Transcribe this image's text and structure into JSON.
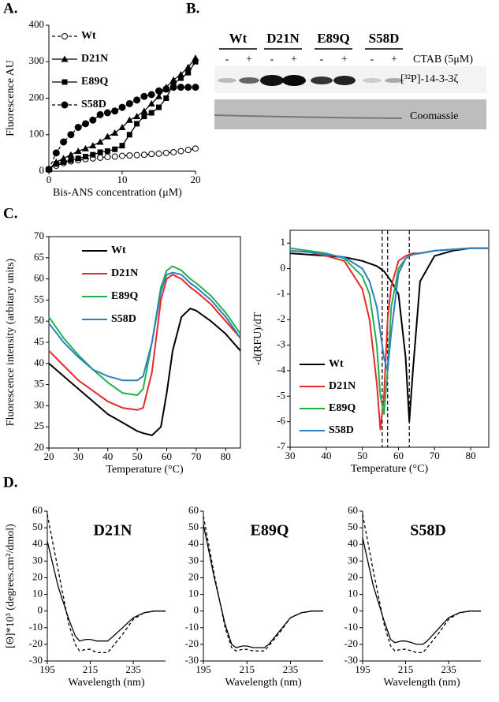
{
  "panel_labels": [
    "A.",
    "B.",
    "C.",
    "D."
  ],
  "gel": {
    "groups": [
      "Wt",
      "D21N",
      "E89Q",
      "S58D"
    ],
    "lanes": [
      "-",
      "+",
      "-",
      "+",
      "-",
      "+",
      "-",
      "+"
    ],
    "condition": "CTAB (5μM)",
    "rows": [
      "[³²P]-14-3-3ζ",
      "Coomassie"
    ]
  },
  "chart_data": [
    {
      "type": "line",
      "xlabel": "Bis-ANS  concentration (μM)",
      "ylabel": "Fluorescence AU",
      "x": [
        0,
        1,
        2,
        3,
        4,
        5,
        6,
        7,
        8,
        9,
        10,
        11,
        12,
        13,
        14,
        15,
        16,
        17,
        18,
        19,
        20
      ],
      "xlim": [
        0,
        20
      ],
      "xticks": [
        0,
        10,
        20
      ],
      "ylim": [
        0,
        400
      ],
      "yticks": [
        0,
        100,
        200,
        300,
        400
      ],
      "frame": "axes",
      "legend": true,
      "series": [
        {
          "name": "Wt",
          "color": "#000000",
          "linestyle": "dashed",
          "marker": "circle-open",
          "values": [
            5,
            15,
            22,
            27,
            30,
            33,
            35,
            37,
            39,
            40,
            42,
            43,
            44,
            45,
            47,
            48,
            50,
            52,
            55,
            58,
            62
          ]
        },
        {
          "name": "D21N",
          "color": "#000000",
          "linestyle": "solid",
          "marker": "triangle",
          "values": [
            5,
            25,
            35,
            45,
            55,
            62,
            70,
            80,
            95,
            105,
            120,
            140,
            150,
            165,
            185,
            205,
            230,
            250,
            265,
            285,
            310
          ]
        },
        {
          "name": "E89Q",
          "color": "#000000",
          "linestyle": "solid",
          "marker": "square",
          "values": [
            5,
            20,
            25,
            30,
            35,
            40,
            45,
            52,
            55,
            60,
            70,
            100,
            130,
            150,
            160,
            175,
            200,
            240,
            255,
            270,
            300
          ]
        },
        {
          "name": "S58D",
          "color": "#000000",
          "linestyle": "dashed",
          "marker": "circle",
          "values": [
            5,
            50,
            80,
            100,
            120,
            130,
            140,
            155,
            160,
            165,
            175,
            185,
            195,
            205,
            210,
            220,
            225,
            230,
            230,
            230,
            230
          ]
        }
      ]
    },
    {
      "type": "line",
      "xlabel": "Temperature (°C)",
      "ylabel": "Fluorescence intensity (arbitary units)",
      "x": [
        20,
        25,
        30,
        35,
        40,
        45,
        50,
        52,
        55,
        58,
        60,
        62,
        65,
        68,
        70,
        75,
        80,
        85
      ],
      "xlim": [
        20,
        85
      ],
      "xticks": [
        20,
        30,
        40,
        50,
        60,
        70,
        80
      ],
      "ylim": [
        20,
        70
      ],
      "yticks": [
        20,
        25,
        30,
        35,
        40,
        45,
        50,
        55,
        60,
        65,
        70
      ],
      "frame": "box",
      "legend": true,
      "series": [
        {
          "name": "Wt",
          "color": "#000000",
          "values": [
            40,
            37,
            34,
            31,
            28,
            26,
            24,
            23.5,
            23,
            25,
            33,
            43,
            51,
            53,
            52.5,
            50,
            47,
            43
          ]
        },
        {
          "name": "D21N",
          "color": "#e8282b",
          "values": [
            43,
            39.5,
            36,
            33.5,
            31,
            29.5,
            29,
            29.5,
            38,
            55,
            60,
            61,
            60,
            58,
            57,
            54,
            50,
            46
          ]
        },
        {
          "name": "E89Q",
          "color": "#22b04b",
          "values": [
            51,
            46,
            42,
            38.5,
            35.5,
            33,
            32.5,
            34,
            45,
            58,
            62,
            63,
            62,
            60,
            59,
            56,
            52,
            47
          ]
        },
        {
          "name": "S58D",
          "color": "#2e7fc1",
          "values": [
            49.5,
            45,
            41.5,
            38.5,
            37,
            36,
            36,
            37,
            45,
            57,
            61,
            61.5,
            61,
            59,
            58,
            55,
            51,
            46
          ]
        }
      ]
    },
    {
      "type": "line",
      "xlabel": "Temperature (°C)",
      "ylabel": "-d(RFU)/dT",
      "x": [
        30,
        35,
        40,
        45,
        50,
        52,
        54,
        55,
        56,
        57,
        58,
        60,
        62,
        63,
        64,
        66,
        70,
        75,
        80,
        85
      ],
      "xlim": [
        30,
        85
      ],
      "xticks": [
        30,
        40,
        50,
        60,
        70,
        80
      ],
      "ylim": [
        -7,
        1.5
      ],
      "yticks": [
        -7,
        -6,
        -5,
        -4,
        -3,
        -2,
        -1,
        0,
        1
      ],
      "frame": "box",
      "legend": true,
      "vlines": [
        55.5,
        57,
        63
      ],
      "series": [
        {
          "name": "Wt",
          "color": "#000000",
          "values": [
            0.6,
            0.55,
            0.5,
            0.45,
            0.3,
            0.2,
            0.1,
            0,
            -0.1,
            -0.3,
            -0.5,
            -1,
            -3.5,
            -6,
            -4,
            -0.5,
            0.5,
            0.7,
            0.8,
            0.8
          ]
        },
        {
          "name": "D21N",
          "color": "#e8282b",
          "values": [
            0.7,
            0.65,
            0.5,
            0.3,
            -0.8,
            -2,
            -4.5,
            -6.3,
            -5,
            -2,
            -0.7,
            0.3,
            0.5,
            0.55,
            0.6,
            0.6,
            0.7,
            0.75,
            0.8,
            0.8
          ]
        },
        {
          "name": "E89Q",
          "color": "#22b04b",
          "values": [
            0.8,
            0.7,
            0.6,
            0.4,
            -0.3,
            -1,
            -3,
            -5,
            -5.7,
            -4,
            -1.5,
            0,
            0.4,
            0.5,
            0.55,
            0.6,
            0.7,
            0.75,
            0.8,
            0.8
          ]
        },
        {
          "name": "S58D",
          "color": "#2e7fc1",
          "values": [
            0.7,
            0.65,
            0.55,
            0.45,
            0,
            -0.5,
            -1.5,
            -2.5,
            -3.5,
            -4,
            -2.5,
            -0.2,
            0.4,
            0.5,
            0.55,
            0.6,
            0.7,
            0.75,
            0.8,
            0.8
          ]
        }
      ]
    },
    {
      "type": "line",
      "title": "D21N",
      "xlabel": "Wavelength (nm)",
      "ylabel": "[Θ]*10³ (degrees.cm²/dmol)",
      "x": [
        195,
        200,
        205,
        208,
        210,
        213,
        215,
        218,
        220,
        223,
        225,
        230,
        235,
        240,
        245,
        250
      ],
      "xlim": [
        195,
        250
      ],
      "xticks": [
        195,
        215,
        235
      ],
      "ylim": [
        -30,
        60
      ],
      "yticks": [
        -30,
        -20,
        -10,
        0,
        10,
        20,
        30,
        40,
        50,
        60
      ],
      "frame": "axes",
      "series": [
        {
          "color": "#000000",
          "linestyle": "solid",
          "values": [
            42,
            15,
            -5,
            -15,
            -18,
            -17,
            -17,
            -18,
            -18,
            -18,
            -16,
            -10,
            -4,
            -1,
            0,
            0
          ]
        },
        {
          "color": "#000000",
          "linestyle": "dashed",
          "values": [
            58,
            25,
            -8,
            -20,
            -24,
            -23,
            -23,
            -25,
            -25,
            -25,
            -22,
            -14,
            -5,
            -1,
            0,
            0
          ]
        }
      ]
    },
    {
      "type": "line",
      "title": "E89Q",
      "xlabel": "Wavelength (nm)",
      "x": [
        195,
        200,
        205,
        208,
        210,
        213,
        215,
        218,
        220,
        223,
        225,
        230,
        235,
        240,
        245,
        250
      ],
      "xlim": [
        195,
        250
      ],
      "xticks": [
        195,
        215,
        235
      ],
      "ylim": [
        -30,
        60
      ],
      "yticks": [
        -30,
        -20,
        -10,
        0,
        10,
        20,
        30,
        40,
        50,
        60
      ],
      "frame": "axes",
      "series": [
        {
          "color": "#000000",
          "linestyle": "solid",
          "values": [
            52,
            20,
            -8,
            -20,
            -22,
            -21,
            -21,
            -22,
            -22,
            -22,
            -20,
            -12,
            -4,
            -1,
            0,
            0
          ]
        },
        {
          "color": "#000000",
          "linestyle": "dashed",
          "values": [
            57,
            22,
            -10,
            -22,
            -24,
            -23,
            -23,
            -24,
            -24,
            -24,
            -21,
            -13,
            -4,
            -1,
            0,
            0
          ]
        }
      ]
    },
    {
      "type": "line",
      "title": "S58D",
      "xlabel": "Wavelength (nm)",
      "x": [
        195,
        200,
        205,
        208,
        210,
        213,
        215,
        218,
        220,
        223,
        225,
        230,
        235,
        240,
        245,
        250
      ],
      "xlim": [
        195,
        250
      ],
      "xticks": [
        195,
        215,
        235
      ],
      "ylim": [
        -30,
        60
      ],
      "yticks": [
        -30,
        -20,
        -10,
        0,
        10,
        20,
        30,
        40,
        50,
        60
      ],
      "frame": "axes",
      "series": [
        {
          "color": "#000000",
          "linestyle": "solid",
          "values": [
            44,
            15,
            -6,
            -17,
            -19,
            -18,
            -18,
            -19,
            -20,
            -20,
            -18,
            -11,
            -4,
            -1,
            0,
            0
          ]
        },
        {
          "color": "#000000",
          "linestyle": "dashed",
          "values": [
            58,
            24,
            -8,
            -21,
            -24,
            -23,
            -23,
            -24,
            -25,
            -25,
            -22,
            -14,
            -5,
            -1,
            0,
            0
          ]
        }
      ]
    }
  ]
}
